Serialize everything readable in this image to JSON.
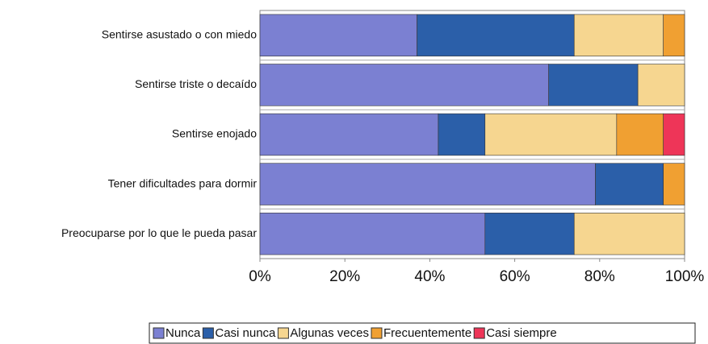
{
  "chart_data": {
    "type": "stacked-bar-horizontal",
    "categories": [
      "Sentirse asustado o con miedo",
      "Sentirse triste o decaído",
      "Sentirse enojado",
      "Tener dificultades para dormir",
      "Preocuparse por lo que le pueda pasar"
    ],
    "series": [
      {
        "name": "Nunca",
        "color": "#7b80d2",
        "values": [
          37,
          68,
          42,
          79,
          53
        ]
      },
      {
        "name": "Casi nunca",
        "color": "#2b5fa9",
        "values": [
          37,
          21,
          11,
          16,
          21
        ]
      },
      {
        "name": "Algunas veces",
        "color": "#f6d690",
        "values": [
          21,
          11,
          31,
          0,
          26
        ]
      },
      {
        "name": "Frecuentemente",
        "color": "#f0a032",
        "values": [
          5,
          0,
          11,
          5,
          0
        ]
      },
      {
        "name": "Casi siempre",
        "color": "#ee3558",
        "values": [
          0,
          0,
          5,
          0,
          0
        ]
      }
    ],
    "xlim": [
      0,
      100
    ],
    "xticks": [
      {
        "value": 0,
        "label": "0%"
      },
      {
        "value": 20,
        "label": "20%"
      },
      {
        "value": 40,
        "label": "40%"
      },
      {
        "value": 60,
        "label": "60%"
      },
      {
        "value": 80,
        "label": "80%"
      },
      {
        "value": 100,
        "label": "100%"
      }
    ]
  }
}
